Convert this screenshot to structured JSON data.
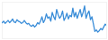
{
  "chart_data": {
    "type": "line",
    "color": "#3a8dd8",
    "tick_labels": false,
    "grid": false,
    "ylim": [
      0,
      50
    ],
    "values": [
      22,
      24,
      21,
      23,
      25,
      22,
      24,
      27,
      23,
      22,
      26,
      24,
      23,
      21,
      22,
      25,
      22,
      20,
      21,
      18,
      17,
      19,
      16,
      18,
      22,
      20,
      24,
      30,
      22,
      26,
      34,
      28,
      30,
      24,
      36,
      30,
      26,
      40,
      33,
      28,
      31,
      38,
      25,
      29,
      35,
      27,
      32,
      30,
      42,
      30,
      36,
      28,
      34,
      40,
      30,
      36,
      45,
      28,
      34,
      38,
      26,
      30,
      20,
      10,
      12,
      9,
      11,
      14,
      12,
      16,
      20,
      18
    ]
  }
}
